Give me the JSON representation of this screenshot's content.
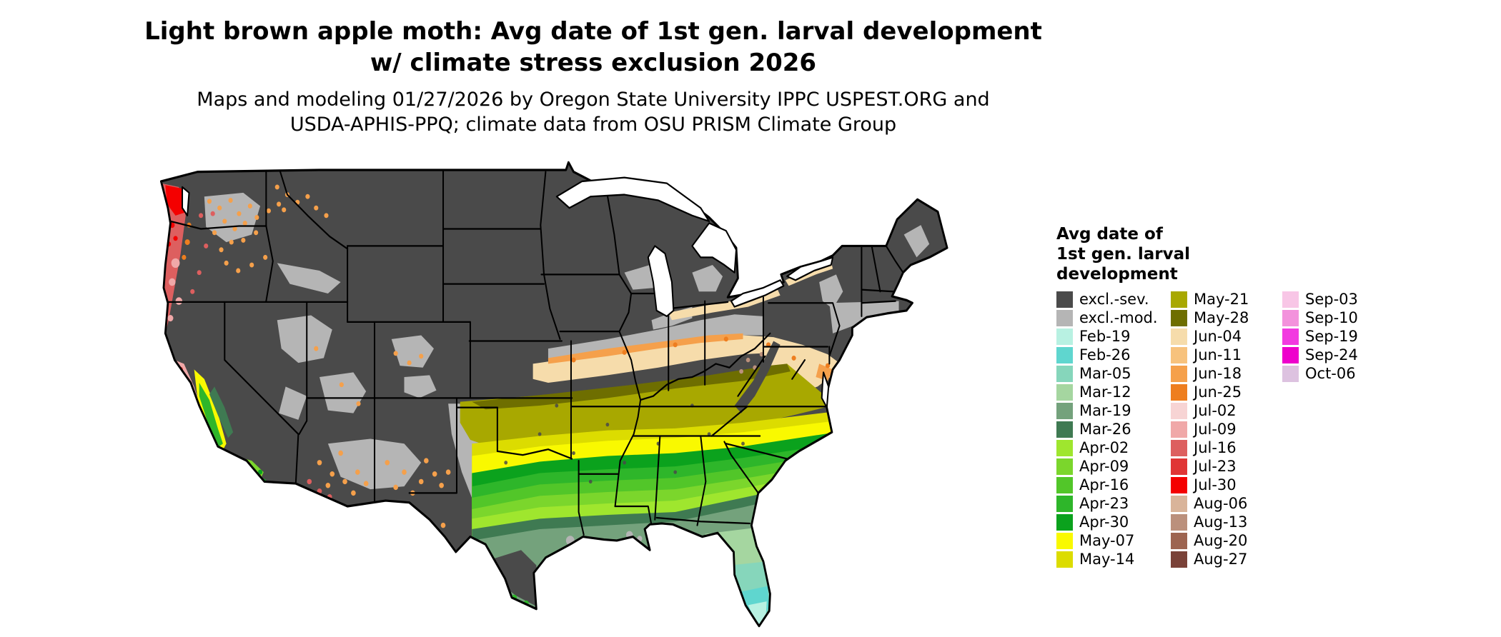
{
  "title": {
    "line1": "Light brown apple moth: Avg date of 1st gen. larval development",
    "line2": "w/ climate stress exclusion 2026"
  },
  "subtitle": {
    "line1": "Maps and modeling 01/27/2026 by Oregon State University IPPC USPEST.ORG and",
    "line2": "USDA-APHIS-PPQ; climate data from OSU PRISM Climate Group"
  },
  "map": {
    "area": "Contiguous United States",
    "kind": "raster choropleth of average date of first generation larval development"
  },
  "palette": {
    "excl_sev": "#4a4a4a",
    "excl_mod": "#b5b5b5",
    "feb19": "#b8f1e2",
    "feb26": "#5fd6cf",
    "mar05": "#86d6bb",
    "mar12": "#a5d6a0",
    "mar19": "#74a27c",
    "mar26": "#3f7a52",
    "apr02": "#9fe62e",
    "apr09": "#7bd62c",
    "apr16": "#52c629",
    "apr23": "#2eb62a",
    "apr30": "#0ba21d",
    "may07": "#f9f900",
    "may14": "#dcdc00",
    "may21": "#a8a800",
    "may28": "#6e6e00",
    "jun04": "#f6dcab",
    "jun11": "#f7c27d",
    "jun18": "#f5a04b",
    "jun25": "#ee7e1f",
    "jul02": "#f7d4d4",
    "jul09": "#f0a8a8",
    "jul16": "#dd5f5f",
    "jul23": "#e03535",
    "jul30": "#f40000",
    "aug06": "#d9b49a",
    "aug13": "#bb907c",
    "aug20": "#9d6450",
    "aug27": "#7a4238",
    "sep03": "#f8c6e6",
    "sep10": "#f392dc",
    "sep19": "#f23ae0",
    "sep24": "#ee00cc",
    "oct06": "#ddc2e0",
    "water": "#ffffff",
    "border": "#000000"
  },
  "legend": {
    "heading_lines": [
      "Avg date of",
      "1st gen. larval",
      "development"
    ],
    "columns": [
      {
        "entries": [
          {
            "label": "excl.-sev.",
            "color_key": "excl_sev"
          },
          {
            "label": "excl.-mod.",
            "color_key": "excl_mod"
          },
          {
            "label": "Feb-19",
            "color_key": "feb19"
          },
          {
            "label": "Feb-26",
            "color_key": "feb26"
          },
          {
            "label": "Mar-05",
            "color_key": "mar05"
          },
          {
            "label": "Mar-12",
            "color_key": "mar12"
          },
          {
            "label": "Mar-19",
            "color_key": "mar19"
          },
          {
            "label": "Mar-26",
            "color_key": "mar26"
          },
          {
            "label": "Apr-02",
            "color_key": "apr02"
          },
          {
            "label": "Apr-09",
            "color_key": "apr09"
          },
          {
            "label": "Apr-16",
            "color_key": "apr16"
          },
          {
            "label": "Apr-23",
            "color_key": "apr23"
          },
          {
            "label": "Apr-30",
            "color_key": "apr30"
          },
          {
            "label": "May-07",
            "color_key": "may07"
          },
          {
            "label": "May-14",
            "color_key": "may14"
          }
        ]
      },
      {
        "entries": [
          {
            "label": "May-21",
            "color_key": "may21"
          },
          {
            "label": "May-28",
            "color_key": "may28"
          },
          {
            "label": "Jun-04",
            "color_key": "jun04"
          },
          {
            "label": "Jun-11",
            "color_key": "jun11"
          },
          {
            "label": "Jun-18",
            "color_key": "jun18"
          },
          {
            "label": "Jun-25",
            "color_key": "jun25"
          },
          {
            "label": "Jul-02",
            "color_key": "jul02"
          },
          {
            "label": "Jul-09",
            "color_key": "jul09"
          },
          {
            "label": "Jul-16",
            "color_key": "jul16"
          },
          {
            "label": "Jul-23",
            "color_key": "jul23"
          },
          {
            "label": "Jul-30",
            "color_key": "jul30"
          },
          {
            "label": "Aug-06",
            "color_key": "aug06"
          },
          {
            "label": "Aug-13",
            "color_key": "aug13"
          },
          {
            "label": "Aug-20",
            "color_key": "aug20"
          },
          {
            "label": "Aug-27",
            "color_key": "aug27"
          }
        ]
      },
      {
        "entries": [
          {
            "label": "Sep-03",
            "color_key": "sep03"
          },
          {
            "label": "Sep-10",
            "color_key": "sep10"
          },
          {
            "label": "Sep-19",
            "color_key": "sep19"
          },
          {
            "label": "Sep-24",
            "color_key": "sep24"
          },
          {
            "label": "Oct-06",
            "color_key": "oct06"
          }
        ]
      }
    ]
  }
}
